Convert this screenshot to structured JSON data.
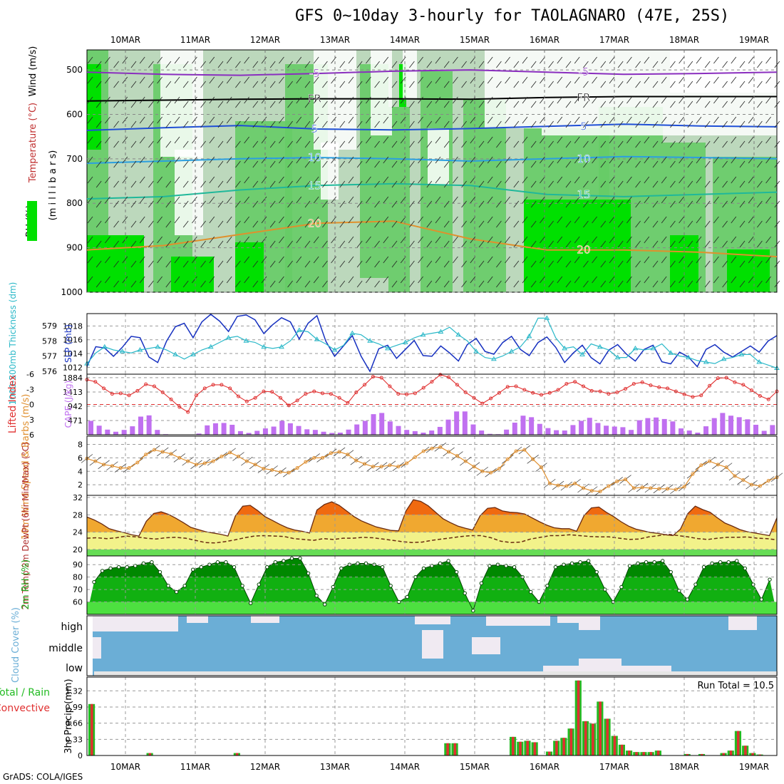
{
  "title": "GFS 0~10day 3-hourly for TAOLAGNARO (47E, 25S)",
  "footer": "GrADS: COLA/IGES",
  "run_total": "Run Total = 10.5",
  "colors": {
    "temp500": "#8a2ebf",
    "freeze": "#000000",
    "t5": "#1f4fd6",
    "t10": "#2b9fe0",
    "t15": "#1fb89a",
    "t20": "#e0902c",
    "rh_dark": "#00e000",
    "rh_mid": "#66cc66",
    "rh_light": "#bcd8bc",
    "slp": "#1630c0",
    "thick": "#2ab8c8",
    "li": "#e03030",
    "cape": "#c070f0",
    "wind": "#e09030",
    "cloud": "#6baed6",
    "rain": "#e03030",
    "precip_total": "#22bb22"
  },
  "chart_data": [
    {
      "type": "contour",
      "panel": "upper-air",
      "ylabel_parts": [
        "RH (%)",
        "Temperature (°C)",
        "Wind (m/s)"
      ],
      "ylabel2": "(m i l l i b a r s)",
      "y_ticks": [
        "500",
        "600",
        "700",
        "800",
        "900",
        "1000"
      ],
      "x_ticks": [
        "10MAR",
        "11MAR",
        "12MAR",
        "13MAR",
        "14MAR",
        "15MAR",
        "16MAR",
        "17MAR",
        "18MAR",
        "19MAR"
      ],
      "contour_labels": [
        "-5",
        "FR",
        "5",
        "10",
        "15",
        "20"
      ],
      "temp_lines": [
        {
          "label": "-5",
          "level_mb": [
            505,
            510,
            512,
            508,
            503,
            500,
            505,
            510,
            508,
            505
          ]
        },
        {
          "label": "FR",
          "level_mb": [
            570,
            568,
            566,
            565,
            565,
            566,
            562,
            560,
            560,
            560
          ]
        },
        {
          "label": "5",
          "level_mb": [
            636,
            630,
            625,
            633,
            635,
            632,
            627,
            622,
            626,
            628
          ]
        },
        {
          "label": "10",
          "level_mb": [
            710,
            705,
            700,
            697,
            700,
            705,
            700,
            695,
            697,
            700
          ]
        },
        {
          "label": "15",
          "level_mb": [
            790,
            785,
            770,
            760,
            756,
            760,
            780,
            785,
            780,
            775
          ]
        },
        {
          "label": "20",
          "level_mb": [
            905,
            895,
            870,
            845,
            840,
            880,
            905,
            905,
            910,
            920
          ]
        }
      ]
    },
    {
      "type": "line",
      "panel": "slp-thickness",
      "ylabel_left": "1000-500mb Thickness (dm)",
      "ylabel_right": "SLP (mb)",
      "left_ticks": [
        "579",
        "578",
        "577",
        "576"
      ],
      "right_ticks": [
        "1018",
        "1016",
        "1014",
        "1012"
      ],
      "series": [
        {
          "name": "SLP",
          "unit": "mb",
          "values": [
            1012.1,
            1015,
            1014.8,
            1013.6,
            1014.9,
            1016.5,
            1016.3,
            1013.5,
            1012.7,
            1015.8,
            1017.9,
            1018.4,
            1016.3,
            1018.6,
            1019.7,
            1018.7,
            1017.2,
            1019.4,
            1019.6,
            1018.9,
            1016.9,
            1018.2,
            1019.2,
            1018.6,
            1016.1,
            1018.4,
            1019.5,
            1015.8,
            1013.6,
            1015.1,
            1016.6,
            1013.6,
            1011.4,
            1014.7,
            1015.2,
            1013.3,
            1014.6,
            1015.9,
            1013.7,
            1013.6,
            1015.1,
            1014.1,
            1012.9,
            1015.3,
            1016.2,
            1014.3,
            1013.9,
            1015.6,
            1016.5,
            1014.6,
            1013.7,
            1015.6,
            1016.4,
            1014.9,
            1012.7,
            1014.1,
            1015.2,
            1013.4,
            1012.5,
            1014.5,
            1015.3,
            1013.9,
            1012.9,
            1014.6,
            1015.2,
            1012.8,
            1012.5,
            1014.2,
            1013.5,
            1012.1,
            1014.6,
            1015.3,
            1014.2,
            1013.5,
            1014.3,
            1015.1,
            1014.2,
            1015.8,
            1016.6
          ]
        },
        {
          "name": "Thickness",
          "unit": "dm",
          "values": [
            576.5,
            577.2,
            577.6,
            577.4,
            577.3,
            577.2,
            577.4,
            577.5,
            577.6,
            577.4,
            577.1,
            576.8,
            577.1,
            577.4,
            577.6,
            577.9,
            578.2,
            578.3,
            578,
            577.9,
            577.6,
            577.5,
            577.6,
            578,
            578.7,
            578.6,
            578.1,
            577.8,
            577.4,
            577.7,
            578.5,
            578.4,
            578,
            577.8,
            577.5,
            577.7,
            577.9,
            578.2,
            578.4,
            578.5,
            578.6,
            578.9,
            578.4,
            578,
            577.3,
            576.9,
            576.8,
            577,
            577.3,
            577.6,
            578.3,
            579.5,
            579.5,
            578.2,
            577.5,
            577.6,
            577.1,
            577.8,
            577.6,
            577.4,
            576.9,
            576.9,
            577.5,
            577.4,
            577.5,
            577.8,
            577.2,
            577,
            576.9,
            576.7,
            576.6,
            576.5,
            576.8,
            576.9,
            577.1,
            577.1,
            576.6,
            576.4,
            576.2
          ]
        }
      ]
    },
    {
      "type": "bar+line",
      "panel": "cape-li",
      "ylabel_left": "Lifted Index",
      "ylabel_right": "CAPE (J/kg)",
      "left_ticks": [
        "-6",
        "-3",
        "0",
        "3",
        "6"
      ],
      "right_ticks": [
        "1884",
        "1413",
        "942",
        "471"
      ],
      "series": [
        {
          "name": "CAPE",
          "unit": "J/kg",
          "values": [
            460,
            300,
            170,
            100,
            160,
            280,
            600,
            640,
            160,
            20,
            10,
            10,
            0,
            40,
            310,
            380,
            390,
            330,
            120,
            60,
            130,
            210,
            270,
            460,
            380,
            290,
            180,
            160,
            100,
            60,
            70,
            170,
            340,
            460,
            680,
            720,
            440,
            290,
            160,
            120,
            70,
            140,
            260,
            500,
            770,
            770,
            340,
            140,
            30,
            20,
            170,
            400,
            630,
            580,
            360,
            220,
            150,
            140,
            320,
            460,
            560,
            390,
            300,
            270,
            250,
            160,
            480,
            550,
            570,
            520,
            440,
            210,
            140,
            70,
            280,
            550,
            720,
            630,
            580,
            510,
            330,
            130,
            320
          ]
        },
        {
          "name": "Lifted Index",
          "values": [
            -4.9,
            -4.5,
            -3.2,
            -2.1,
            -2.2,
            -1.8,
            -2.7,
            -4,
            -3.6,
            -2.4,
            -1,
            0.5,
            1.5,
            -1.8,
            -3.2,
            -3.9,
            -3.9,
            -3.2,
            -1.6,
            -0.6,
            -1.3,
            -2.6,
            -2.5,
            -1.3,
            0.2,
            -0.8,
            -2.1,
            -2.6,
            -2.2,
            -2.1,
            -1.3,
            -0.3,
            -2.4,
            -3.9,
            -5.5,
            -5.3,
            -3.6,
            -2.1,
            -2,
            -2.2,
            -3.3,
            -4.5,
            -5.9,
            -5.4,
            -3.9,
            -2.4,
            -1.3,
            -0.2,
            -1.2,
            -2.3,
            -3.5,
            -3.6,
            -2.9,
            -2.3,
            -1.9,
            -2.3,
            -2.9,
            -4.1,
            -4.5,
            -3.6,
            -2.7,
            -2.6,
            -2.1,
            -2.4,
            -3.1,
            -4.1,
            -4.4,
            -3.8,
            -3.4,
            -3.2,
            -2.6,
            -2,
            -1.5,
            -1.8,
            -3.7,
            -5.2,
            -5.3,
            -4.4,
            -3.9,
            -2.8,
            -1.7,
            -1,
            -2.6
          ]
        }
      ]
    },
    {
      "type": "line",
      "panel": "wind10m",
      "ylabel": "10m Wind Speed & Barbs (m/s)",
      "y_ticks": [
        "8",
        "6",
        "4",
        "2"
      ],
      "values": [
        5.9,
        5.5,
        5,
        4.8,
        4.5,
        4.5,
        5.3,
        6.5,
        7.2,
        6.9,
        6.6,
        6,
        5.5,
        5,
        5.2,
        5.5,
        6.2,
        6.8,
        6.2,
        5.5,
        5,
        4.4,
        4.2,
        3.9,
        3.8,
        4.5,
        5.4,
        6,
        6,
        6.7,
        6.9,
        6.5,
        5.6,
        5.1,
        4.7,
        4.7,
        4.9,
        4.7,
        5.2,
        6.1,
        7,
        7.4,
        7.6,
        6.9,
        6.3,
        5.5,
        4.7,
        4,
        3.8,
        4.4,
        5.8,
        7,
        7.2,
        5.8,
        4.6,
        2.2,
        1.9,
        1.8,
        2.2,
        1.5,
        1.1,
        1,
        1.8,
        2.5,
        2.8,
        1.5,
        1.6,
        1.5,
        1.4,
        1.4,
        1.3,
        1.7,
        3.6,
        4.9,
        5.5,
        5,
        4.6,
        3.3,
        2.7,
        2,
        1.8,
        2.6,
        3.1
      ]
    },
    {
      "type": "area",
      "panel": "temp-dewpt",
      "ylabel": "2m Temp 2m DewPt (6hr Min/Max) (°C)",
      "y_ticks": [
        "32",
        "28",
        "24",
        "20"
      ],
      "series": [
        {
          "name": "2m Temp",
          "values": [
            27.5,
            26.8,
            25.9,
            24.8,
            24.3,
            23.9,
            23.4,
            23.1,
            26.5,
            28.3,
            28.7,
            28.1,
            27.2,
            26.2,
            25.1,
            24.6,
            24.1,
            23.8,
            23.5,
            23.1,
            27.7,
            30,
            30.2,
            29,
            27.6,
            26.7,
            25.8,
            25,
            24.5,
            24.2,
            23.8,
            29.1,
            30.4,
            31,
            30.2,
            28.9,
            27.6,
            26.6,
            25.9,
            25.2,
            24.8,
            24.4,
            24.3,
            28.9,
            31.5,
            31.1,
            30.1,
            28.6,
            27.1,
            26.2,
            25.4,
            24.9,
            24.5,
            27.8,
            29.5,
            29.7,
            28.9,
            28.6,
            28.5,
            28.2,
            27.3,
            26.4,
            25.6,
            25,
            24.8,
            24.8,
            24.2,
            27.8,
            29.6,
            29.8,
            28.6,
            27.6,
            26.4,
            25.4,
            24.7,
            24.3,
            23.9,
            23.7,
            23.4,
            23.2,
            24.7,
            28.3,
            30,
            29.2,
            28.6,
            27.3,
            26.1,
            25.4,
            24.6,
            24.1,
            23.8,
            23.5,
            23.2,
            27.3
          ]
        },
        {
          "name": "2m DewPt",
          "values": [
            22.6,
            22.7,
            22.5,
            22.7,
            23.1,
            22.9,
            22.6,
            22.4,
            22.7,
            22.8,
            22.6,
            22.1,
            21.6,
            21.5,
            21.8,
            22.2,
            22.7,
            23.1,
            23.2,
            23.1,
            23,
            22.5,
            22.3,
            22.1,
            22.5,
            22.3,
            22.6,
            22.6,
            22.8,
            22.7,
            22.4,
            22.1,
            21.8,
            21.6,
            21.7,
            22.1,
            22.4,
            22.7,
            23,
            23.2,
            23.2,
            22.7,
            21.9,
            21.6,
            21.7,
            22.4,
            22.8,
            23.2,
            23.2,
            23.4,
            23.2,
            23,
            22.9,
            22.9,
            22.6,
            22.3,
            22.4,
            22.9,
            23.2,
            23.5,
            23.2,
            22.9,
            22.5,
            22.3,
            22.6,
            22.8,
            22.8,
            22.9,
            22.6,
            22.5,
            22.2
          ]
        }
      ]
    },
    {
      "type": "area",
      "panel": "rh2m",
      "ylabel": "2m RH (%)",
      "y_ticks": [
        "90",
        "80",
        "70",
        "60"
      ],
      "values": [
        76,
        85,
        87,
        88,
        88,
        89,
        91,
        92,
        84,
        73,
        68,
        73,
        86,
        88,
        90,
        92,
        92,
        88,
        73,
        59,
        74,
        88,
        92,
        93,
        95,
        95,
        83,
        65,
        58,
        72,
        87,
        90,
        91,
        91,
        90,
        88,
        73,
        60,
        64,
        80,
        87,
        89,
        91,
        93,
        84,
        67,
        53,
        75,
        89,
        90,
        89,
        88,
        80,
        68,
        60,
        73,
        88,
        90,
        91,
        92,
        93,
        84,
        70,
        60,
        72,
        89,
        91,
        92,
        92,
        93,
        84,
        69,
        62,
        74,
        88,
        91,
        92,
        92,
        93,
        87,
        74,
        62,
        78
      ]
    },
    {
      "type": "area",
      "panel": "cloud-cover",
      "ylabel": "Cloud Cover (%)",
      "layer_labels": [
        "high",
        "middle",
        "low"
      ]
    },
    {
      "type": "bar",
      "panel": "precip",
      "ylabel": "3hr Precip (mm)",
      "ylabel_left_a": "Total / Rain",
      "ylabel_left_b": "Convective",
      "y_ticks": [
        "1.32",
        "0.99",
        "0.66",
        "0.33",
        "0"
      ],
      "values": [
        1.05,
        0,
        0,
        0,
        0,
        0,
        0,
        0,
        0.05,
        0,
        0,
        0,
        0,
        0,
        0,
        0,
        0,
        0,
        0,
        0,
        0.05,
        0,
        0,
        0,
        0,
        0,
        0,
        0,
        0,
        0,
        0,
        0,
        0,
        0,
        0,
        0,
        0,
        0,
        0,
        0,
        0,
        0,
        0,
        0,
        0,
        0,
        0,
        0,
        0,
        0.25,
        0.25,
        0,
        0,
        0,
        0,
        0,
        0,
        0,
        0.38,
        0.28,
        0.3,
        0.27,
        0,
        0.08,
        0.3,
        0.36,
        0.55,
        1.53,
        0.7,
        0.65,
        1.1,
        0.75,
        0.4,
        0.22,
        0.1,
        0.07,
        0.07,
        0.07,
        0.1,
        0,
        0,
        0,
        0.03,
        0,
        0.03,
        0,
        0,
        0.05,
        0.1,
        0.5,
        0.2,
        0.05,
        0.02,
        0,
        0
      ]
    }
  ]
}
